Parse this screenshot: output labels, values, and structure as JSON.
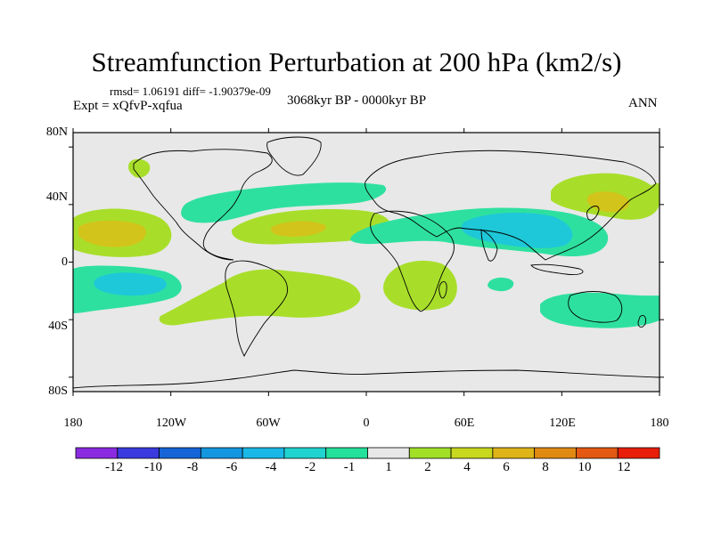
{
  "title": "Streamfunction Perturbation at 200 hPa (km2/s)",
  "stats_text": "rmsd= 1.06191 diff= -1.90379e-09",
  "experiment_text": "Expt = xQfvP-xqfua",
  "period_text": "3068kyr BP - 0000kyr BP",
  "season_text": "ANN",
  "lat_ticks": [
    "80N",
    "40N",
    "0",
    "40S",
    "80S"
  ],
  "lon_ticks": [
    "180",
    "120W",
    "60W",
    "0",
    "60E",
    "120E",
    "180"
  ],
  "colorbar": {
    "labels": [
      "-12",
      "-10",
      "-8",
      "-6",
      "-4",
      "-2",
      "-1",
      "1",
      "2",
      "4",
      "6",
      "8",
      "10",
      "12"
    ],
    "colors": [
      "#8a2be2",
      "#3a3adf",
      "#1565d8",
      "#1496e0",
      "#1ab8e6",
      "#21d3d0",
      "#23e09a",
      "#e8e8e8",
      "#a2e028",
      "#c8d81e",
      "#deb418",
      "#e08a14",
      "#e45a12",
      "#e81e0a"
    ]
  },
  "map_colors": {
    "background": "#e8e8e8",
    "negative_light": "#2ee0a0",
    "negative_mid": "#1ec8d8",
    "positive_light": "#a8de2a",
    "positive_mid": "#d2c41a",
    "positive_high": "#e0a218",
    "coastline": "#000000"
  }
}
